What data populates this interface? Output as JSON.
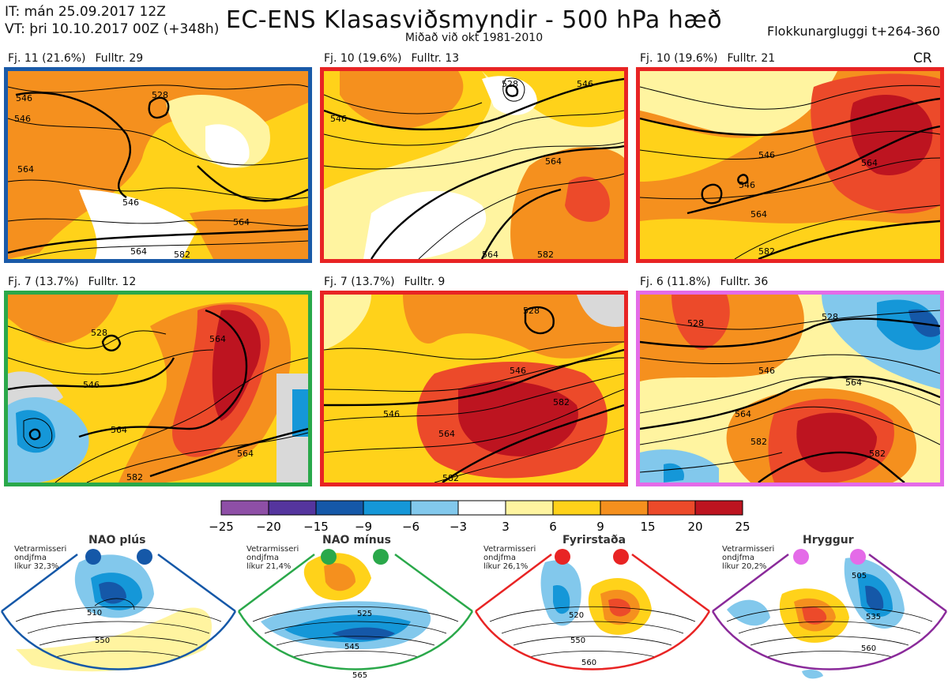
{
  "header": {
    "it_line": "IT: mán 25.09.2017 12Z",
    "vt_line": "VT: þri 10.10.2017 00Z  (+348h)",
    "title": "EC-ENS Klasasviðsmyndir - 500 hPa hæð",
    "subtitle": "Miðað við okt 1981-2010",
    "window": "Flokkunargluggi t+264-360"
  },
  "panels": [
    {
      "label": "Fj. 11 (21.6%)",
      "full": "Fulltr. 29",
      "border": "#1a5aa8",
      "extra": "",
      "contours": [
        "546",
        "528",
        "546",
        "564",
        "546",
        "564",
        "564",
        "582"
      ]
    },
    {
      "label": "Fj. 10 (19.6%)",
      "full": "Fulltr. 13",
      "border": "#e82424",
      "extra": "",
      "contours": [
        "528",
        "546",
        "546",
        "564",
        "564",
        "582"
      ]
    },
    {
      "label": "Fj. 10 (19.6%)",
      "full": "Fulltr. 21",
      "border": "#e82424",
      "extra": "CR",
      "contours": [
        "546",
        "564",
        "564",
        "582",
        "546"
      ]
    },
    {
      "label": "Fj. 7 (13.7%)",
      "full": "Fulltr. 12",
      "border": "#2aa84a",
      "extra": "",
      "contours": [
        "528",
        "546",
        "564",
        "564",
        "564",
        "582"
      ]
    },
    {
      "label": "Fj. 7 (13.7%)",
      "full": "Fulltr. 9",
      "border": "#e82424",
      "extra": "",
      "contours": [
        "528",
        "546",
        "546",
        "564",
        "582",
        "582"
      ]
    },
    {
      "label": "Fj. 6 (11.8%)",
      "full": "Fulltr. 36",
      "border": "#e46be8",
      "extra": "",
      "contours": [
        "528",
        "528",
        "546",
        "564",
        "564",
        "582",
        "582"
      ]
    }
  ],
  "colorbar": {
    "colors": [
      "#8e4fa6",
      "#55359e",
      "#1558a8",
      "#1597d8",
      "#82c8ec",
      "#ffffff",
      "#fff4a0",
      "#ffd21a",
      "#f5901e",
      "#ec4a2a",
      "#bd1420"
    ],
    "ticks": [
      "−25",
      "−20",
      "−15",
      "−9",
      "−6",
      "−3",
      "3",
      "6",
      "9",
      "15",
      "20",
      "25"
    ]
  },
  "sectors": [
    {
      "title": "NAO plús",
      "note": [
        "Vetrarmisseri",
        "ondjfma",
        "líkur 32,3%"
      ],
      "dot": "#1558a8",
      "line": "#1558a8",
      "contours": [
        "510",
        "550"
      ]
    },
    {
      "title": "NAO mínus",
      "note": [
        "Vetrarmisseri",
        "ondjfma",
        "líkur 21,4%"
      ],
      "dot": "#2aa84a",
      "line": "#2aa84a",
      "contours": [
        "525",
        "545",
        "565"
      ]
    },
    {
      "title": "Fyrirstaða",
      "note": [
        "Vetrarmisseri",
        "ondjfma",
        "líkur 26,1%"
      ],
      "dot": "#e82424",
      "line": "#e82424",
      "contours": [
        "520",
        "550",
        "560"
      ]
    },
    {
      "title": "Hryggur",
      "note": [
        "Vetrarmisseri",
        "ondjfma",
        "líkur 20,2%"
      ],
      "dot": "#e46be8",
      "line": "#8a2a9a",
      "contours": [
        "505",
        "535",
        "560"
      ]
    }
  ]
}
